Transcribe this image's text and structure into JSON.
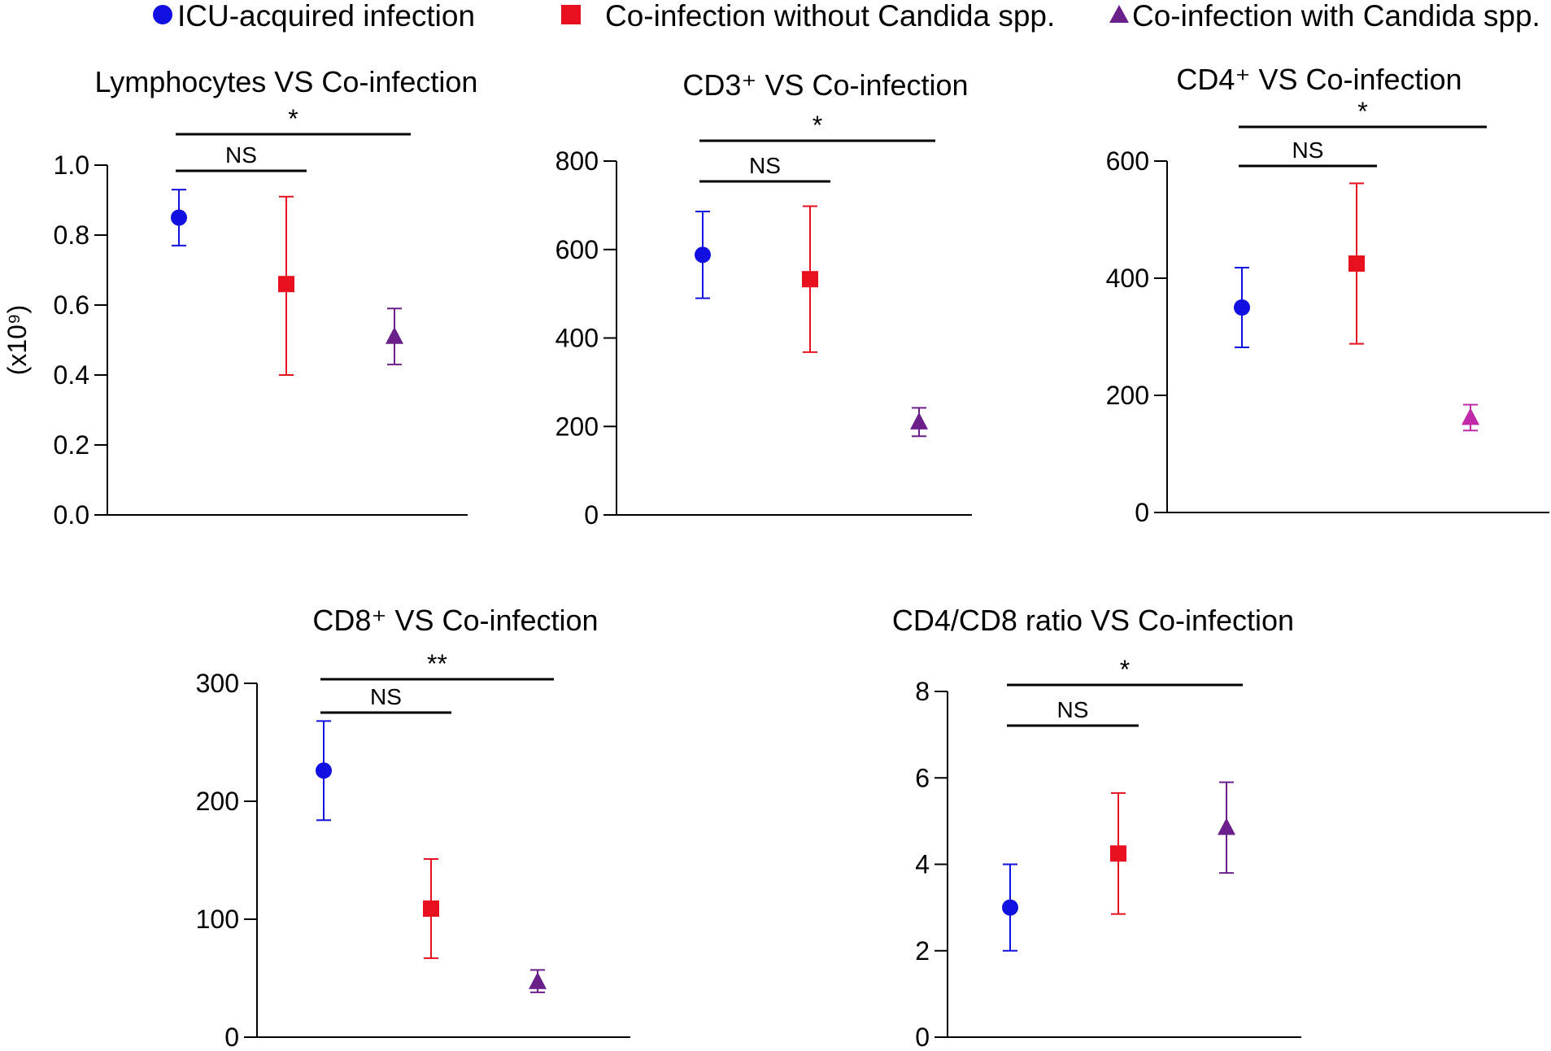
{
  "legend": [
    {
      "label": "ICU-acquired infection",
      "marker": "circle-icon",
      "color": "#1010e0"
    },
    {
      "label": "Co-infection without Candida spp.",
      "marker": "square-icon",
      "color": "#e8101e"
    },
    {
      "label": "Co-infection with Candida spp.",
      "marker": "triangle-icon",
      "color": "#6a1f8a"
    }
  ],
  "chart_data": [
    {
      "type": "scatter",
      "title": "Lymphocytes VS Co-infection",
      "ylabel": "(x10⁹)",
      "ylim": [
        0,
        1.0
      ],
      "yticks": [
        0.0,
        0.2,
        0.4,
        0.6,
        0.8,
        1.0
      ],
      "ytick_labels": [
        "0.0",
        "0.2",
        "0.4",
        "0.6",
        "0.8",
        "1.0"
      ],
      "series": [
        {
          "name": "ICU-acquired infection",
          "marker": "circle",
          "color": "#1010e0",
          "value": 0.85,
          "err_low": 0.77,
          "err_high": 0.93
        },
        {
          "name": "Co-infection without Candida spp.",
          "marker": "square",
          "color": "#e8101e",
          "value": 0.66,
          "err_low": 0.4,
          "err_high": 0.91
        },
        {
          "name": "Co-infection with Candida spp.",
          "marker": "triangle",
          "color": "#6a1f8a",
          "value": 0.51,
          "err_low": 0.43,
          "err_high": 0.59
        }
      ],
      "comparisons": [
        {
          "from": 0,
          "to": 1,
          "label": "NS"
        },
        {
          "from": 0,
          "to": 2,
          "label": "*"
        }
      ]
    },
    {
      "type": "scatter",
      "title": "CD3⁺ VS Co-infection",
      "ylabel": "",
      "ylim": [
        0,
        800
      ],
      "yticks": [
        0,
        200,
        400,
        600,
        800
      ],
      "ytick_labels": [
        "0",
        "200",
        "400",
        "600",
        "800"
      ],
      "series": [
        {
          "name": "ICU-acquired infection",
          "marker": "circle",
          "color": "#1010e0",
          "value": 588,
          "err_low": 490,
          "err_high": 686
        },
        {
          "name": "Co-infection without Candida spp.",
          "marker": "square",
          "color": "#e8101e",
          "value": 533,
          "err_low": 368,
          "err_high": 698
        },
        {
          "name": "Co-infection with Candida spp.",
          "marker": "triangle",
          "color": "#6a1f8a",
          "value": 210,
          "err_low": 178,
          "err_high": 242
        }
      ],
      "comparisons": [
        {
          "from": 0,
          "to": 1,
          "label": "NS"
        },
        {
          "from": 0,
          "to": 2,
          "label": "*"
        }
      ]
    },
    {
      "type": "scatter",
      "title": "CD4⁺ VS Co-infection",
      "ylabel": "",
      "ylim": [
        0,
        600
      ],
      "yticks": [
        0,
        200,
        400,
        600
      ],
      "ytick_labels": [
        "0",
        "200",
        "400",
        "600"
      ],
      "series": [
        {
          "name": "ICU-acquired infection",
          "marker": "circle",
          "color": "#1010e0",
          "value": 350,
          "err_low": 282,
          "err_high": 418
        },
        {
          "name": "Co-infection without Candida spp.",
          "marker": "square",
          "color": "#e8101e",
          "value": 425,
          "err_low": 288,
          "err_high": 562
        },
        {
          "name": "Co-infection with Candida spp.",
          "marker": "triangle",
          "color": "#c02aa8",
          "value": 162,
          "err_low": 140,
          "err_high": 184
        }
      ],
      "comparisons": [
        {
          "from": 0,
          "to": 1,
          "label": "NS"
        },
        {
          "from": 0,
          "to": 2,
          "label": "*"
        }
      ]
    },
    {
      "type": "scatter",
      "title": "CD8⁺ VS Co-infection",
      "ylabel": "",
      "ylim": [
        0,
        300
      ],
      "yticks": [
        0,
        100,
        200,
        300
      ],
      "ytick_labels": [
        "0",
        "100",
        "200",
        "300"
      ],
      "series": [
        {
          "name": "ICU-acquired infection",
          "marker": "circle",
          "color": "#1010e0",
          "value": 226,
          "err_low": 184,
          "err_high": 268
        },
        {
          "name": "Co-infection without Candida spp.",
          "marker": "square",
          "color": "#e8101e",
          "value": 109,
          "err_low": 67,
          "err_high": 151
        },
        {
          "name": "Co-infection with Candida spp.",
          "marker": "triangle",
          "color": "#6a1f8a",
          "value": 47,
          "err_low": 38,
          "err_high": 57
        }
      ],
      "comparisons": [
        {
          "from": 0,
          "to": 1,
          "label": "NS"
        },
        {
          "from": 0,
          "to": 2,
          "label": "**"
        }
      ]
    },
    {
      "type": "scatter",
      "title": "CD4/CD8 ratio VS Co-infection",
      "ylabel": "",
      "ylim": [
        0,
        8
      ],
      "yticks": [
        0,
        2,
        4,
        6,
        8
      ],
      "ytick_labels": [
        "0",
        "2",
        "4",
        "6",
        "8"
      ],
      "series": [
        {
          "name": "ICU-acquired infection",
          "marker": "circle",
          "color": "#1010e0",
          "value": 3.0,
          "err_low": 2.0,
          "err_high": 4.0
        },
        {
          "name": "Co-infection without Candida spp.",
          "marker": "square",
          "color": "#e8101e",
          "value": 4.25,
          "err_low": 2.85,
          "err_high": 5.65
        },
        {
          "name": "Co-infection with Candida spp.",
          "marker": "triangle",
          "color": "#6a1f8a",
          "value": 4.85,
          "err_low": 3.8,
          "err_high": 5.9
        }
      ],
      "comparisons": [
        {
          "from": 0,
          "to": 1,
          "label": "NS"
        },
        {
          "from": 0,
          "to": 2,
          "label": "*"
        }
      ]
    }
  ]
}
